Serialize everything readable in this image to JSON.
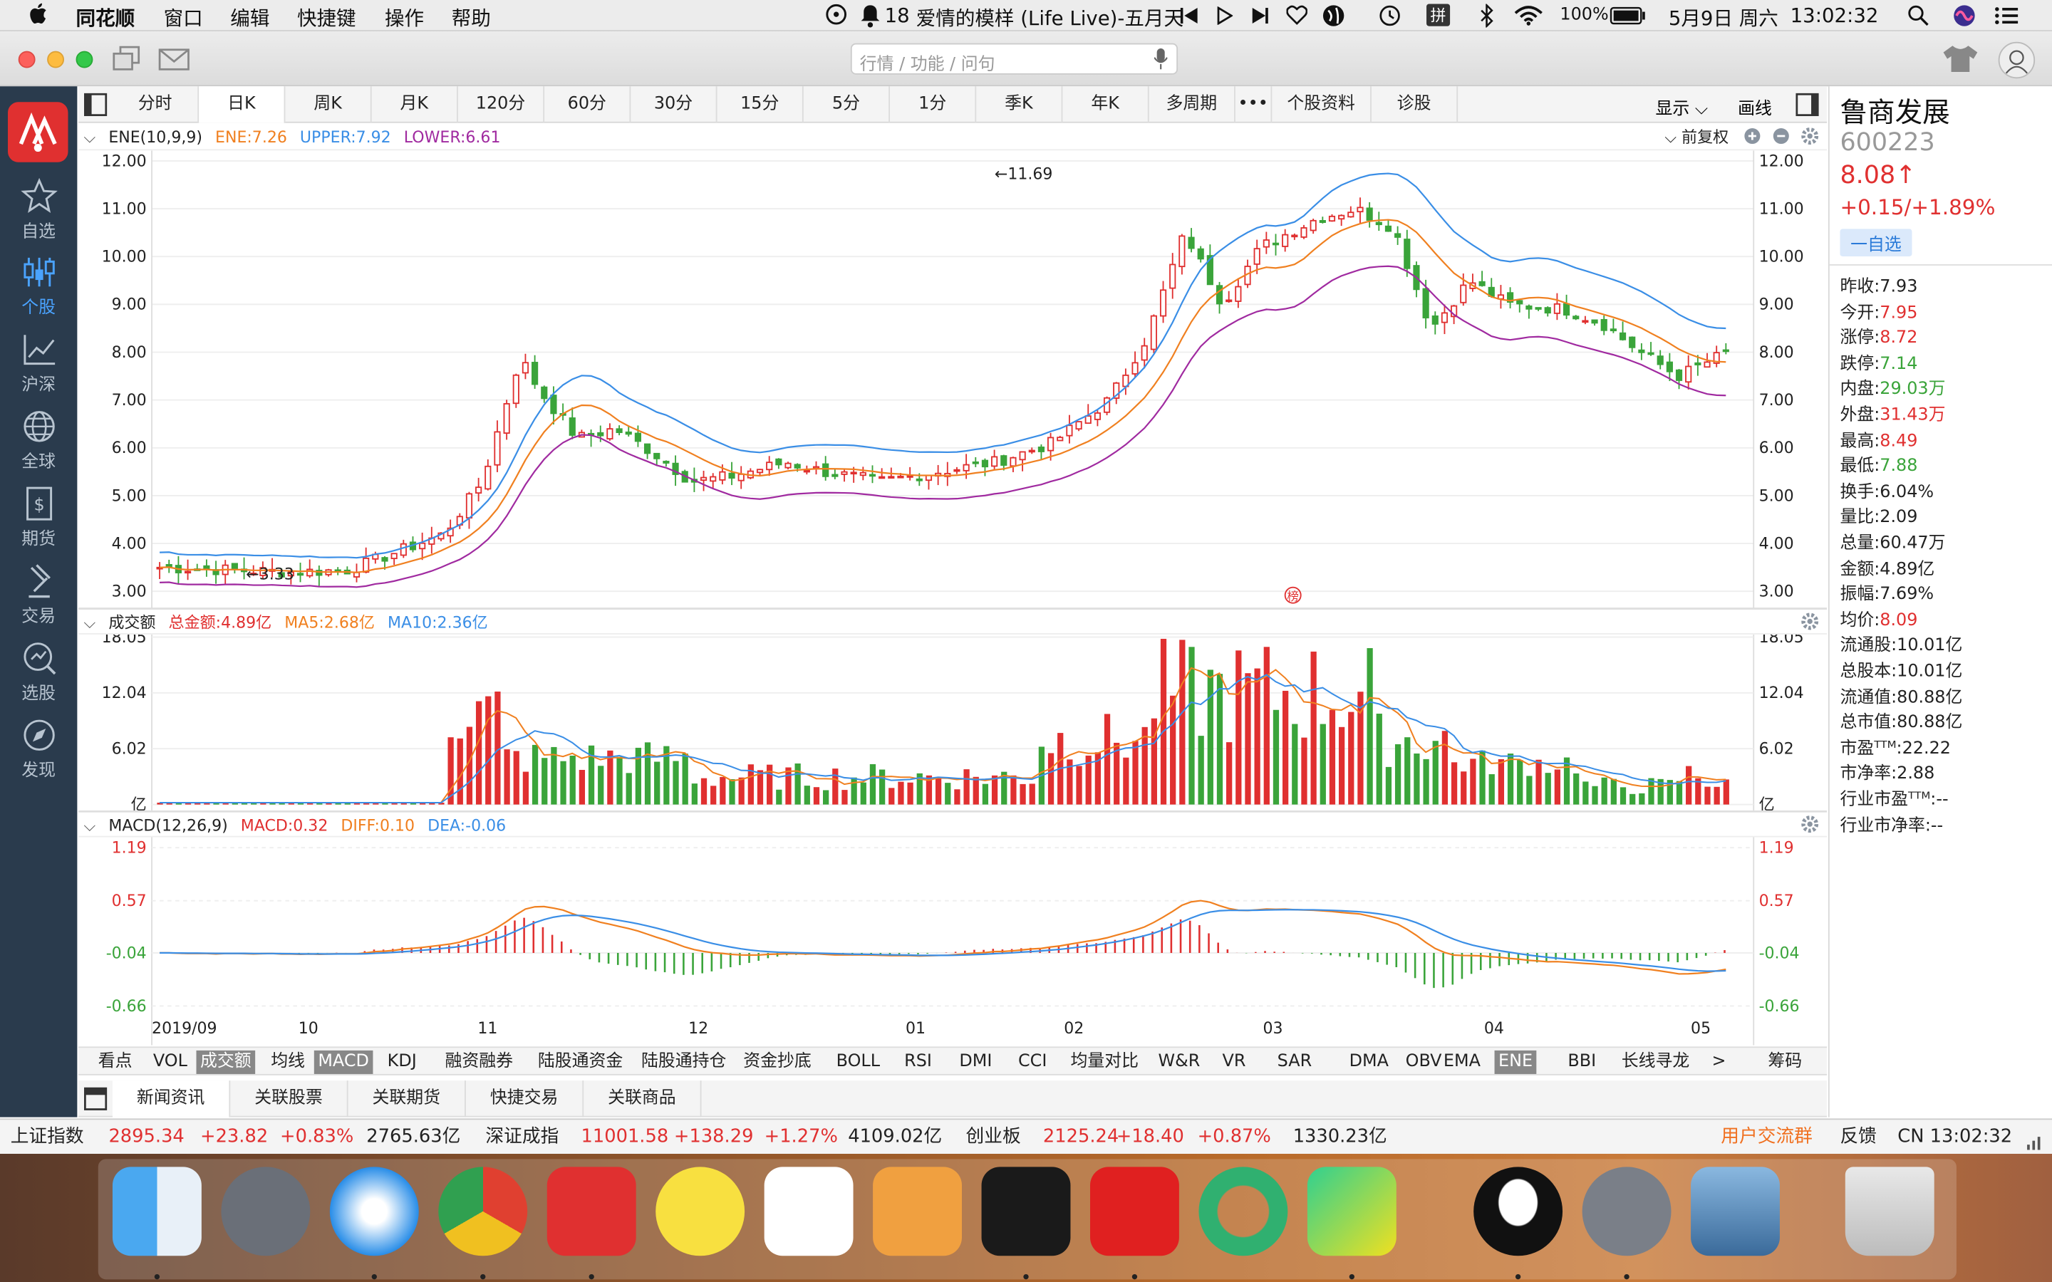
{
  "menubar": {
    "apple": "",
    "app": "同花顺",
    "items": [
      "窗口",
      "编辑",
      "快捷键",
      "操作",
      "帮助"
    ],
    "badge": "18",
    "song": "爱情的模样 (Life Live)-五月天",
    "battery": "100%",
    "date": "5月9日 周六",
    "time": "13:02:32",
    "ime": "拼"
  },
  "toolbar": {
    "search_placeholder": "行情 / 功能 / 问句"
  },
  "sidebar": {
    "logo": "同花顺",
    "items": [
      "自选",
      "个股",
      "沪深",
      "全球",
      "期货",
      "交易",
      "选股",
      "发现"
    ]
  },
  "period_tabs": [
    "分时",
    "日K",
    "周K",
    "月K",
    "120分",
    "60分",
    "30分",
    "15分",
    "5分",
    "1分",
    "季K",
    "年K",
    "多周期",
    "•••",
    "个股资料",
    "诊股"
  ],
  "period_right": {
    "display": "显示",
    "draw": "画线"
  },
  "main_chart": {
    "indicator": "ENE(10,9,9)",
    "ene": "ENE:7.26",
    "upper": "UPPER:7.92",
    "lower": "LOWER:6.61",
    "adjust": "前复权",
    "y_ticks": [
      "12.00",
      "11.00",
      "10.00",
      "9.00",
      "8.00",
      "7.00",
      "6.00",
      "5.00",
      "4.00",
      "3.00"
    ],
    "max_label": "←11.69",
    "min_label": "←3.33",
    "marker": "榜"
  },
  "volume_chart": {
    "name": "成交额",
    "total": "总金额:4.89亿",
    "ma5": "MA5:2.68亿",
    "ma10": "MA10:2.36亿",
    "y_ticks": [
      "18.05",
      "12.04",
      "6.02",
      "亿"
    ]
  },
  "macd_chart": {
    "name": "MACD(12,26,9)",
    "macd": "MACD:0.32",
    "diff": "DIFF:0.10",
    "dea": "DEA:-0.06",
    "y_ticks": [
      "1.19",
      "0.57",
      "-0.04",
      "-0.66"
    ],
    "x_ticks": [
      "2019/09",
      "10",
      "11",
      "12",
      "01",
      "02",
      "03",
      "04",
      "05"
    ]
  },
  "indicator_tabs": [
    "看点",
    "VOL",
    "成交额",
    "均线",
    "MACD",
    "KDJ",
    "融资融券",
    "陆股通资金",
    "陆股通持仓",
    "资金抄底",
    "BOLL",
    "RSI",
    "DMI",
    "CCI",
    "均量对比",
    "W&R",
    "VR",
    "SAR",
    "DMA",
    "OBV",
    "EMA",
    "ENE",
    "BBI",
    "长线寻龙",
    ">",
    "筹码"
  ],
  "news_tabs": [
    "新闻资讯",
    "关联股票",
    "关联期货",
    "快捷交易",
    "关联商品"
  ],
  "stock": {
    "name": "鲁商发展",
    "code": "600223",
    "price": "8.08↑",
    "change": "+0.15/+1.89%",
    "fav_button": "一自选",
    "rows": [
      [
        "昨收:",
        "7.93"
      ],
      [
        "今开:",
        "7.95"
      ],
      [
        "涨停:",
        "8.72"
      ],
      [
        "跌停:",
        "7.14"
      ],
      [
        "内盘:",
        "29.03万"
      ],
      [
        "外盘:",
        "31.43万"
      ],
      [
        "最高:",
        "8.49"
      ],
      [
        "最低:",
        "7.88"
      ],
      [
        "换手:",
        "6.04%"
      ],
      [
        "量比:",
        "2.09"
      ],
      [
        "总量:",
        "60.47万"
      ],
      [
        "金额:",
        "4.89亿"
      ],
      [
        "振幅:",
        "7.69%"
      ],
      [
        "均价:",
        "8.09"
      ],
      [
        "流通股:",
        "10.01亿"
      ],
      [
        "总股本:",
        "10.01亿"
      ],
      [
        "流通值:",
        "80.88亿"
      ],
      [
        "总市值:",
        "80.88亿"
      ],
      [
        "市盈ᵀᵀᴹ:",
        "22.22"
      ],
      [
        "市净率:",
        "2.88"
      ],
      [
        "行业市盈ᵀᵀᴹ:",
        "--"
      ],
      [
        "行业市净率:",
        "--"
      ]
    ]
  },
  "status": {
    "sh_name": "上证指数",
    "sh_val": "2895.34",
    "sh_chg": "+23.82",
    "sh_pct": "+0.83%",
    "sh_amt": "2765.63亿",
    "sz_name": "深证成指",
    "sz_val": "11001.58",
    "sz_chg": "+138.29",
    "sz_pct": "+1.27%",
    "sz_amt": "4109.02亿",
    "cy_name": "创业板",
    "cy_val": "2125.24",
    "cy_chg": "+18.40",
    "cy_pct": "+0.87%",
    "cy_amt": "1330.23亿",
    "group": "用户交流群",
    "feedback": "反馈",
    "clock": "CN 13:02:32"
  },
  "colors": {
    "up": "#e03030",
    "down": "#3aa43a",
    "ene": "#f08020",
    "upper": "#3a8ee6",
    "lower": "#a02aa0",
    "sidebar": "#2a3b4d"
  }
}
